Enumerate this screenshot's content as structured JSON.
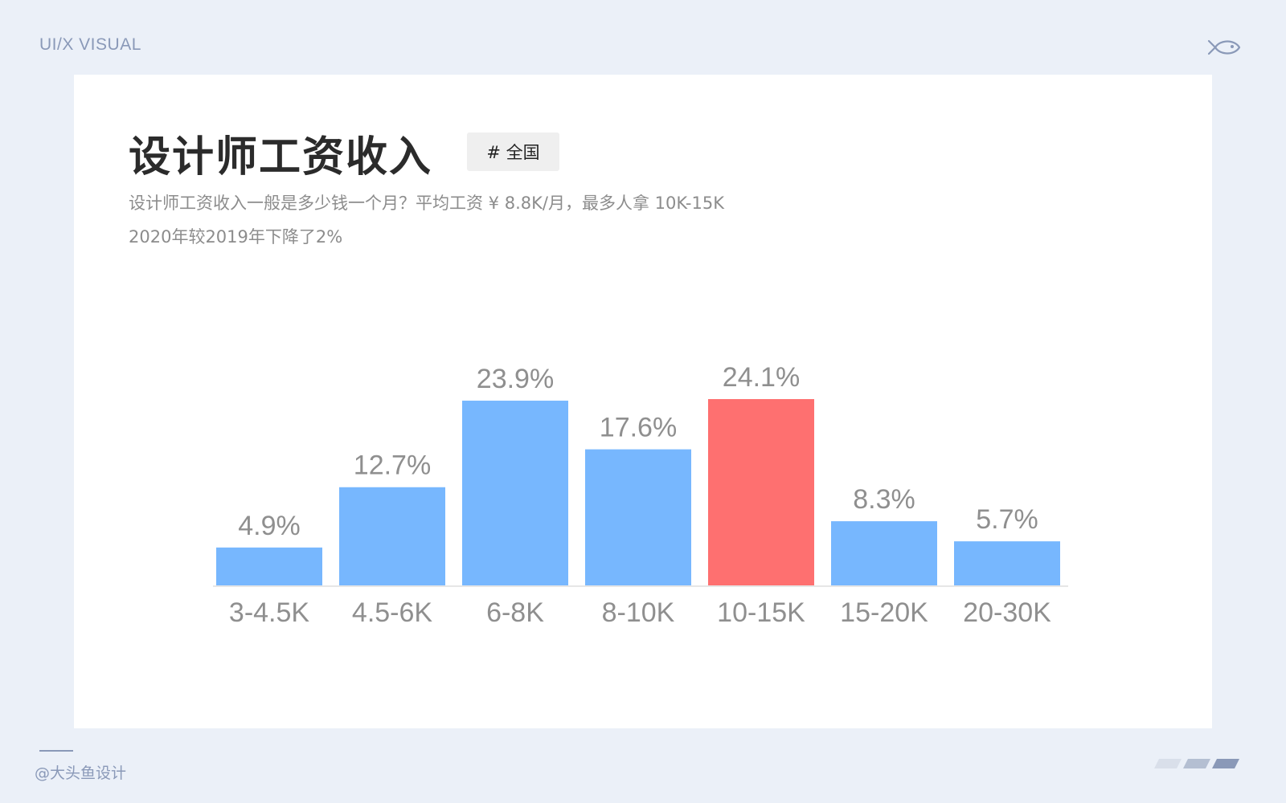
{
  "brand": "UI/X VISUAL",
  "title": "设计师工资收入",
  "tag": "# 全国",
  "subtitle_line1": "设计师工资收入一般是多少钱一个月？平均工资 ¥ 8.8K/月，最多人拿 10K-15K",
  "subtitle_line2": "2020年较2019年下降了2%",
  "footer": "@大头鱼设计",
  "icons": {
    "top_right": "fish-icon",
    "bottom_right": "decorative-stripes"
  },
  "colors": {
    "bar": "#77B7FE",
    "highlight": "#FE7070",
    "label": "#8F8F8F",
    "background": "#EBF0F8"
  },
  "chart_data": {
    "type": "bar",
    "categories": [
      "3-4.5K",
      "4.5-6K",
      "6-8K",
      "8-10K",
      "10-15K",
      "15-20K",
      "20-30K"
    ],
    "values": [
      4.9,
      12.7,
      23.9,
      17.6,
      24.1,
      8.3,
      5.7
    ],
    "value_labels": [
      "4.9%",
      "12.7%",
      "23.9%",
      "17.6%",
      "24.1%",
      "8.3%",
      "5.7%"
    ],
    "highlight_index": 4,
    "ylim": [
      0,
      24.1
    ],
    "grid": false,
    "title": "",
    "xlabel": "",
    "ylabel": ""
  }
}
